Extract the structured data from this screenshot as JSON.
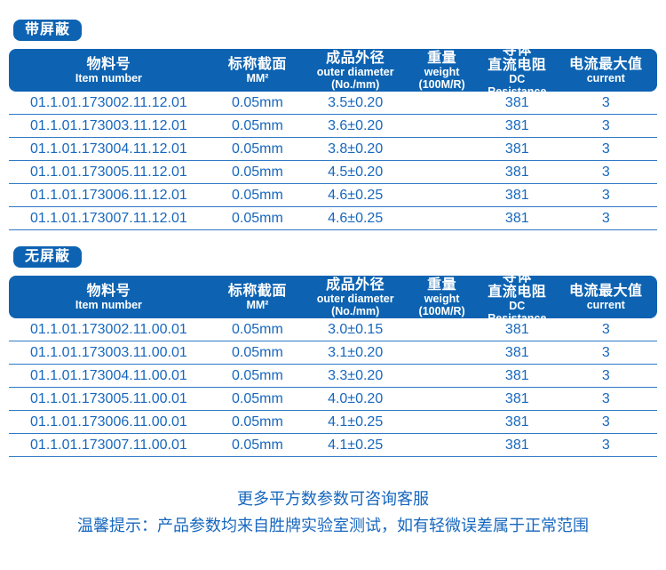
{
  "colors": {
    "primary_blue": "#0d63b2",
    "text_blue": "#1767be",
    "divider_blue": "#2e7ac5",
    "background": "#ffffff"
  },
  "tables": [
    {
      "badge": "带屏蔽",
      "columns": [
        {
          "lines": [
            "物料号",
            "Item number"
          ]
        },
        {
          "lines": [
            "标称截面",
            "MM²"
          ]
        },
        {
          "lines": [
            "成品外径",
            "outer diameter",
            "(No./mm)"
          ]
        },
        {
          "lines": [
            "重量",
            "weight",
            "(100M/R)"
          ]
        },
        {
          "lines": [
            "导体",
            "直流电阻",
            "DC Resistance"
          ]
        },
        {
          "lines": [
            "电流最大值",
            "current"
          ]
        }
      ],
      "rows": [
        [
          "01.1.01.173002.11.12.01",
          "0.05mm",
          "3.5±0.20",
          "",
          "381",
          "3"
        ],
        [
          "01.1.01.173003.11.12.01",
          "0.05mm",
          "3.6±0.20",
          "",
          "381",
          "3"
        ],
        [
          "01.1.01.173004.11.12.01",
          "0.05mm",
          "3.8±0.20",
          "",
          "381",
          "3"
        ],
        [
          "01.1.01.173005.11.12.01",
          "0.05mm",
          "4.5±0.20",
          "",
          "381",
          "3"
        ],
        [
          "01.1.01.173006.11.12.01",
          "0.05mm",
          "4.6±0.25",
          "",
          "381",
          "3"
        ],
        [
          "01.1.01.173007.11.12.01",
          "0.05mm",
          "4.6±0.25",
          "",
          "381",
          "3"
        ]
      ]
    },
    {
      "badge": "无屏蔽",
      "columns": [
        {
          "lines": [
            "物料号",
            "Item number"
          ]
        },
        {
          "lines": [
            "标称截面",
            "MM²"
          ]
        },
        {
          "lines": [
            "成品外径",
            "outer diameter",
            "(No./mm)"
          ]
        },
        {
          "lines": [
            "重量",
            "weight",
            "(100M/R)"
          ]
        },
        {
          "lines": [
            "导体",
            "直流电阻",
            "DC Resistance"
          ]
        },
        {
          "lines": [
            "电流最大值",
            "current"
          ]
        }
      ],
      "rows": [
        [
          "01.1.01.173002.11.00.01",
          "0.05mm",
          "3.0±0.15",
          "",
          "381",
          "3"
        ],
        [
          "01.1.01.173003.11.00.01",
          "0.05mm",
          "3.1±0.20",
          "",
          "381",
          "3"
        ],
        [
          "01.1.01.173004.11.00.01",
          "0.05mm",
          "3.3±0.20",
          "",
          "381",
          "3"
        ],
        [
          "01.1.01.173005.11.00.01",
          "0.05mm",
          "4.0±0.20",
          "",
          "381",
          "3"
        ],
        [
          "01.1.01.173006.11.00.01",
          "0.05mm",
          "4.1±0.25",
          "",
          "381",
          "3"
        ],
        [
          "01.1.01.173007.11.00.01",
          "0.05mm",
          "4.1±0.25",
          "",
          "381",
          "3"
        ]
      ]
    }
  ],
  "footer": {
    "line1": "更多平方数参数可咨询客服",
    "line2": "温馨提示：产品参数均来自胜牌实验室测试，如有轻微误差属于正常范围"
  }
}
